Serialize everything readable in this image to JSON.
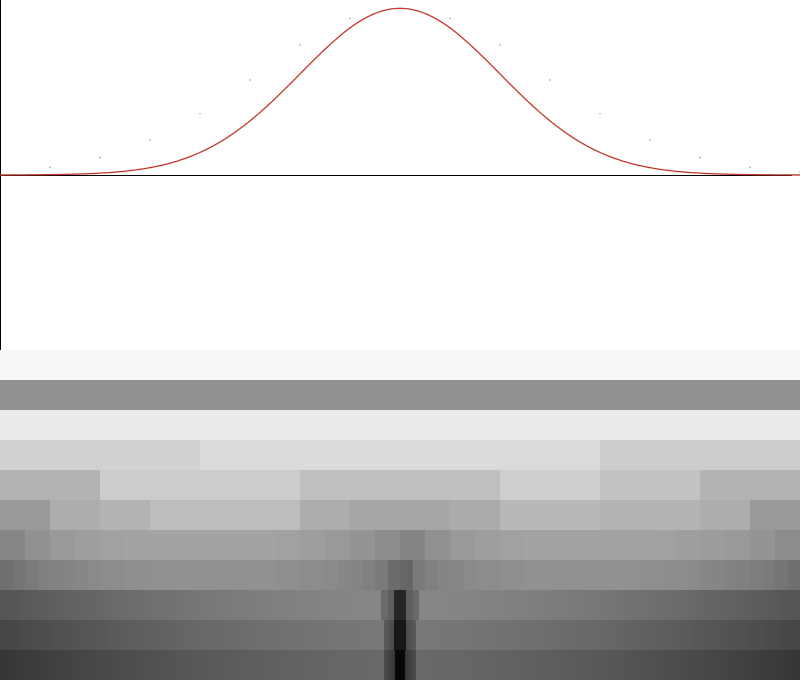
{
  "chart_data": [
    {
      "type": "line",
      "title": "",
      "xlabel": "",
      "ylabel": "",
      "grid": false,
      "legend": "none",
      "curve": "gaussian",
      "x_range": [
        -4,
        4
      ],
      "y_range": [
        -1.05,
        1.05
      ],
      "series": [
        {
          "color": "#c0392b",
          "x": [
            -4,
            -3.5,
            -3,
            -2.5,
            -2,
            -1.5,
            -1,
            -0.5,
            0,
            0.5,
            1,
            1.5,
            2,
            2.5,
            3,
            3.5,
            4
          ],
          "y": [
            0.018,
            0.047,
            0.105,
            0.21,
            0.368,
            0.57,
            0.78,
            0.94,
            1.0,
            0.94,
            0.78,
            0.57,
            0.368,
            0.21,
            0.105,
            0.047,
            0.018
          ]
        }
      ],
      "axes": {
        "color": "#000000",
        "x_axis_at": 0,
        "y_axis_at": -4
      }
    },
    {
      "type": "heatmap",
      "colormap": "grayscale",
      "rows": [
        {
          "segments": 1,
          "values": [
            0.97
          ]
        },
        {
          "segments": 1,
          "values": [
            0.57
          ]
        },
        {
          "segments": 1,
          "values": [
            0.92
          ]
        },
        {
          "segments": 4,
          "values": [
            0.82,
            0.86,
            0.86,
            0.8
          ]
        },
        {
          "segments": 8,
          "values": [
            0.7,
            0.8,
            0.8,
            0.75,
            0.75,
            0.81,
            0.76,
            0.7
          ]
        },
        {
          "segments": 16,
          "values": [
            0.6,
            0.68,
            0.7,
            0.74,
            0.74,
            0.74,
            0.68,
            0.65,
            0.65,
            0.67,
            0.72,
            0.72,
            0.7,
            0.7,
            0.68,
            0.6
          ]
        },
        {
          "segments": 32,
          "values": [
            0.53,
            0.57,
            0.6,
            0.62,
            0.63,
            0.64,
            0.64,
            0.64,
            0.64,
            0.64,
            0.64,
            0.63,
            0.62,
            0.6,
            0.58,
            0.55,
            0.52,
            0.57,
            0.6,
            0.62,
            0.63,
            0.64,
            0.64,
            0.64,
            0.64,
            0.64,
            0.63,
            0.62,
            0.61,
            0.6,
            0.58,
            0.55
          ]
        },
        {
          "segments": 64,
          "values": [
            0.44,
            0.46,
            0.48,
            0.5,
            0.51,
            0.52,
            0.53,
            0.54,
            0.55,
            0.55,
            0.56,
            0.56,
            0.57,
            0.57,
            0.57,
            0.57,
            0.57,
            0.57,
            0.57,
            0.57,
            0.57,
            0.57,
            0.56,
            0.56,
            0.55,
            0.55,
            0.54,
            0.53,
            0.52,
            0.5,
            0.48,
            0.42,
            0.4,
            0.48,
            0.5,
            0.52,
            0.53,
            0.54,
            0.55,
            0.55,
            0.56,
            0.56,
            0.57,
            0.57,
            0.57,
            0.57,
            0.57,
            0.57,
            0.57,
            0.57,
            0.57,
            0.56,
            0.56,
            0.55,
            0.55,
            0.54,
            0.53,
            0.52,
            0.51,
            0.5,
            0.49,
            0.48,
            0.46,
            0.44
          ]
        },
        {
          "segments": 128,
          "values": []
        },
        {
          "segments": 256,
          "values": []
        },
        {
          "segments": 512,
          "values": []
        }
      ]
    }
  ]
}
